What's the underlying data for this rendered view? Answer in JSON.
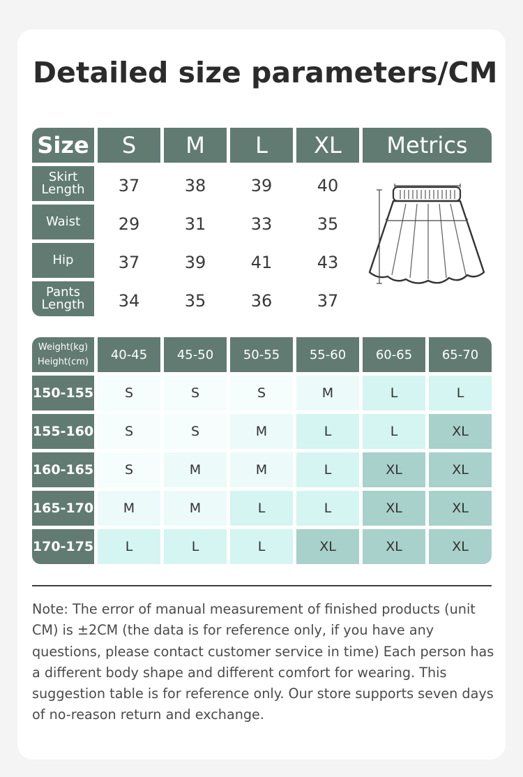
{
  "title": "Detailed size parameters/CM",
  "size_table": {
    "corner": "Size",
    "sizes": [
      "S",
      "M",
      "L",
      "XL"
    ],
    "metrics_label": "Metrics",
    "rows": [
      {
        "label_line1": "Skirt",
        "label_line2": "Length",
        "values": [
          "37",
          "38",
          "39",
          "40"
        ]
      },
      {
        "label_line1": "Waist",
        "label_line2": "",
        "values": [
          "29",
          "31",
          "33",
          "35"
        ]
      },
      {
        "label_line1": "Hip",
        "label_line2": "",
        "values": [
          "37",
          "39",
          "41",
          "43"
        ]
      },
      {
        "label_line1": "Pants",
        "label_line2": "Length",
        "values": [
          "34",
          "35",
          "36",
          "37"
        ]
      }
    ]
  },
  "recommend_table": {
    "corner_weight": "Weight(kg)",
    "corner_height": "Height(cm)",
    "weights": [
      "40-45",
      "45-50",
      "50-55",
      "55-60",
      "60-65",
      "65-70"
    ],
    "rows": [
      {
        "height": "150-155",
        "sizes": [
          "S",
          "S",
          "S",
          "M",
          "L",
          "L"
        ]
      },
      {
        "height": "155-160",
        "sizes": [
          "S",
          "S",
          "M",
          "L",
          "L",
          "XL"
        ]
      },
      {
        "height": "160-165",
        "sizes": [
          "S",
          "M",
          "M",
          "L",
          "XL",
          "XL"
        ]
      },
      {
        "height": "165-170",
        "sizes": [
          "M",
          "M",
          "L",
          "L",
          "XL",
          "XL"
        ]
      },
      {
        "height": "170-175",
        "sizes": [
          "L",
          "L",
          "L",
          "XL",
          "XL",
          "XL"
        ]
      }
    ],
    "colors": {
      "S": "#f5fdfd",
      "M": "#ecfafa",
      "L": "#d4f5f1",
      "XL": "#a7d1ca"
    }
  },
  "note": "Note: The error of manual measurement of finished products (unit CM) is ±2CM (the data is for reference only, if you have any questions, please contact customer service in time) Each person has a different body shape and different comfort for wearing. This suggestion table is for reference only. Our store supports seven days of no-reason return and exchange."
}
